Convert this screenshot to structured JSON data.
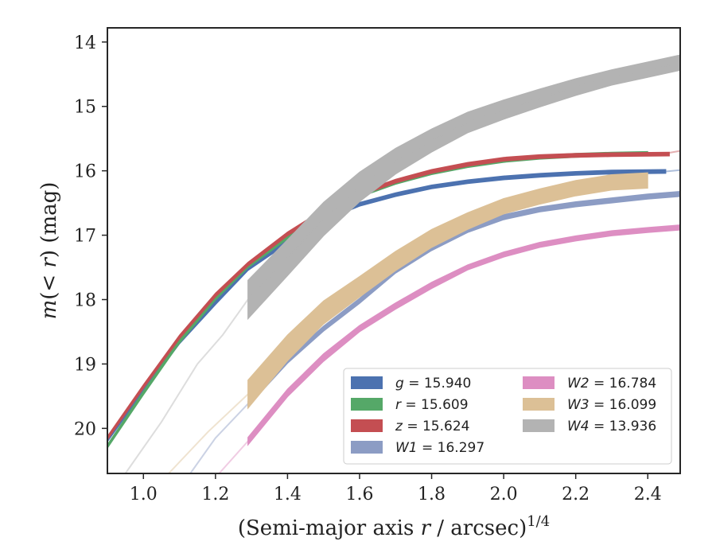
{
  "chart_data": {
    "type": "line",
    "xlabel_main": "(Semi-major axis ",
    "xlabel_var": "r",
    "xlabel_tail": " / arcsec)",
    "xlabel_sup": "1/4",
    "ylabel_main": "m(",
    "ylabel_var": "< r",
    "ylabel_tail": ") (mag)",
    "xlim": [
      0.9,
      2.49
    ],
    "ylim": [
      20.7,
      13.78
    ],
    "y_inverted": true,
    "xticks": [
      "1.0",
      "1.2",
      "1.4",
      "1.6",
      "1.8",
      "2.0",
      "2.2",
      "2.4"
    ],
    "yticks": [
      "14",
      "15",
      "16",
      "17",
      "18",
      "19",
      "20"
    ],
    "grid": false,
    "legend_position": "lower-right",
    "series": [
      {
        "name": "g = 15.940",
        "label_band": "g",
        "label_value": "= 15.940",
        "color": "#4c72b0",
        "x": [
          0.9,
          1.0,
          1.1,
          1.2,
          1.29,
          1.4,
          1.5,
          1.6,
          1.7,
          1.8,
          1.9,
          2.0,
          2.1,
          2.2,
          2.3,
          2.45
        ],
        "y": [
          20.18,
          19.4,
          18.66,
          18.05,
          17.52,
          17.1,
          16.75,
          16.52,
          16.37,
          16.25,
          16.17,
          16.11,
          16.07,
          16.04,
          16.02,
          16.01
        ],
        "halfwidth": [
          0.03,
          0.03,
          0.03,
          0.03,
          0.03,
          0.03,
          0.03,
          0.03,
          0.03,
          0.03,
          0.03,
          0.03,
          0.03,
          0.03,
          0.03,
          0.03
        ],
        "ext_x": [
          2.45,
          2.49
        ],
        "ext_y": [
          16.01,
          15.99
        ]
      },
      {
        "name": "r = 15.609",
        "label_band": "r",
        "label_value": "= 15.609",
        "color": "#55a868",
        "x": [
          0.9,
          1.0,
          1.1,
          1.2,
          1.29,
          1.4,
          1.5,
          1.6,
          1.7,
          1.8,
          1.9,
          2.0,
          2.1,
          2.2,
          2.3,
          2.4
        ],
        "y": [
          20.28,
          19.45,
          18.65,
          17.98,
          17.48,
          17.03,
          16.65,
          16.38,
          16.18,
          16.03,
          15.92,
          15.84,
          15.79,
          15.76,
          15.74,
          15.73
        ],
        "halfwidth": [
          0.03,
          0.03,
          0.03,
          0.03,
          0.03,
          0.03,
          0.03,
          0.03,
          0.03,
          0.03,
          0.03,
          0.03,
          0.03,
          0.03,
          0.03,
          0.03
        ],
        "ext_x": [],
        "ext_y": []
      },
      {
        "name": "z = 15.624",
        "label_band": "z",
        "label_value": "= 15.624",
        "color": "#c44e52",
        "x": [
          0.9,
          1.0,
          1.1,
          1.2,
          1.29,
          1.4,
          1.5,
          1.6,
          1.7,
          1.8,
          1.9,
          2.0,
          2.1,
          2.2,
          2.3,
          2.46
        ],
        "y": [
          20.15,
          19.35,
          18.58,
          17.93,
          17.45,
          16.98,
          16.63,
          16.36,
          16.16,
          16.01,
          15.9,
          15.82,
          15.78,
          15.76,
          15.75,
          15.74
        ],
        "halfwidth": [
          0.03,
          0.03,
          0.03,
          0.03,
          0.03,
          0.03,
          0.03,
          0.03,
          0.03,
          0.03,
          0.03,
          0.03,
          0.03,
          0.03,
          0.03,
          0.03
        ],
        "ext_x": [
          2.46,
          2.49
        ],
        "ext_y": [
          15.72,
          15.69
        ]
      },
      {
        "name": "W1 = 16.297",
        "label_band": "W1",
        "label_value": "= 16.297",
        "color": "#8c9cc4",
        "x": [
          1.29,
          1.4,
          1.5,
          1.6,
          1.7,
          1.8,
          1.9,
          2.0,
          2.1,
          2.2,
          2.3,
          2.4,
          2.49
        ],
        "y": [
          19.62,
          18.95,
          18.45,
          18.02,
          17.55,
          17.2,
          16.92,
          16.72,
          16.6,
          16.52,
          16.46,
          16.4,
          16.36
        ],
        "halfwidth": [
          0.04,
          0.04,
          0.04,
          0.04,
          0.04,
          0.04,
          0.04,
          0.04,
          0.04,
          0.04,
          0.04,
          0.04,
          0.04
        ],
        "ext_x": [
          1.13,
          1.2,
          1.29
        ],
        "ext_y": [
          20.7,
          20.15,
          19.62
        ]
      },
      {
        "name": "W2 = 16.784",
        "label_band": "W2",
        "label_value": "= 16.784",
        "color": "#dd8ec2",
        "x": [
          1.29,
          1.4,
          1.5,
          1.6,
          1.7,
          1.8,
          1.9,
          2.0,
          2.1,
          2.2,
          2.3,
          2.4,
          2.49
        ],
        "y": [
          20.2,
          19.45,
          18.9,
          18.45,
          18.1,
          17.78,
          17.5,
          17.3,
          17.15,
          17.05,
          16.97,
          16.92,
          16.88
        ],
        "halfwidth": [
          0.06,
          0.06,
          0.06,
          0.05,
          0.05,
          0.05,
          0.04,
          0.04,
          0.04,
          0.04,
          0.04,
          0.04,
          0.04
        ],
        "ext_x": [
          1.21,
          1.25,
          1.29
        ],
        "ext_y": [
          20.7,
          20.45,
          20.2
        ]
      },
      {
        "name": "W3 = 16.099",
        "label_band": "W3",
        "label_value": "= 16.099",
        "color": "#dcc096",
        "x": [
          1.29,
          1.4,
          1.5,
          1.6,
          1.7,
          1.8,
          1.9,
          2.0,
          2.1,
          2.2,
          2.3,
          2.4
        ],
        "y": [
          19.47,
          18.75,
          18.2,
          17.8,
          17.4,
          17.05,
          16.78,
          16.55,
          16.4,
          16.27,
          16.18,
          16.15
        ],
        "halfwidth": [
          0.22,
          0.2,
          0.18,
          0.16,
          0.15,
          0.14,
          0.13,
          0.12,
          0.12,
          0.12,
          0.12,
          0.12
        ],
        "ext_x": [
          1.07,
          1.18,
          1.29
        ],
        "ext_y": [
          20.7,
          20.05,
          19.47
        ]
      },
      {
        "name": "W4 = 13.936",
        "label_band": "W4",
        "label_value": "= 13.936",
        "color": "#b3b3b3",
        "x": [
          1.29,
          1.4,
          1.5,
          1.6,
          1.7,
          1.8,
          1.9,
          2.0,
          2.1,
          2.2,
          2.3,
          2.4,
          2.49
        ],
        "y": [
          18.0,
          17.35,
          16.75,
          16.25,
          15.85,
          15.53,
          15.25,
          15.05,
          14.87,
          14.7,
          14.55,
          14.43,
          14.32
        ],
        "halfwidth": [
          0.3,
          0.28,
          0.26,
          0.23,
          0.2,
          0.18,
          0.16,
          0.15,
          0.14,
          0.13,
          0.12,
          0.12,
          0.12
        ],
        "ext_x": [
          0.95,
          1.05,
          1.15,
          1.22,
          1.29
        ],
        "ext_y": [
          20.7,
          19.9,
          19.0,
          18.55,
          18.0
        ]
      }
    ]
  }
}
